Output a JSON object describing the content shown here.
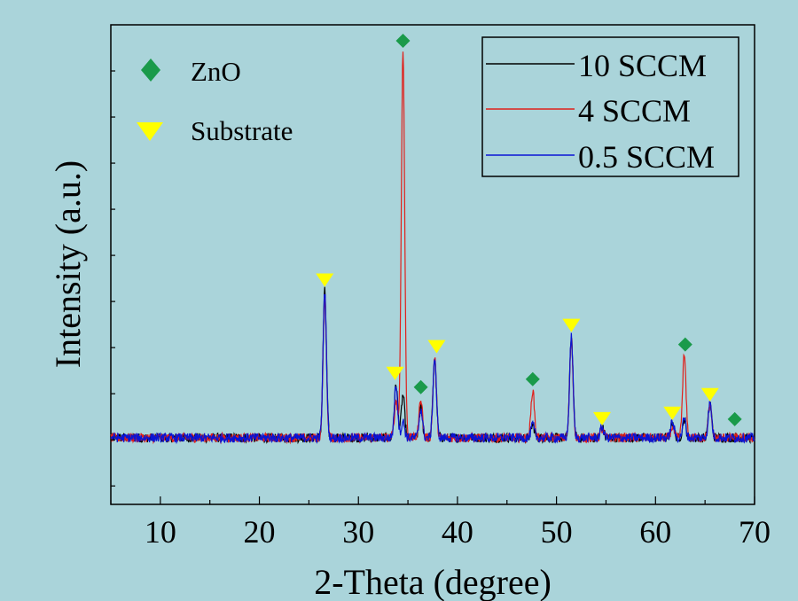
{
  "chart_data": {
    "type": "line",
    "xlabel": "2-Theta (degree)",
    "ylabel": "Intensity (a.u.)",
    "xlim": [
      5,
      70
    ],
    "ylim": [
      -0.25,
      1.55
    ],
    "x_ticks": [
      10,
      20,
      30,
      40,
      50,
      60,
      70
    ],
    "x_tick_labels": [
      "10",
      "20",
      "30",
      "40",
      "50",
      "60",
      "70"
    ],
    "y_tick_labels_visible": false,
    "grid": false,
    "legend_position": "top-right",
    "series": [
      {
        "name": "10 SCCM",
        "color": "#000000",
        "peaks": [
          {
            "x": 26.6,
            "y": 0.55
          },
          {
            "x": 33.8,
            "y": 0.2
          },
          {
            "x": 34.5,
            "y": 0.16
          },
          {
            "x": 36.3,
            "y": 0.11
          },
          {
            "x": 37.7,
            "y": 0.3
          },
          {
            "x": 47.6,
            "y": 0.05
          },
          {
            "x": 51.5,
            "y": 0.38
          },
          {
            "x": 54.6,
            "y": 0.04
          },
          {
            "x": 61.7,
            "y": 0.06
          },
          {
            "x": 62.9,
            "y": 0.07
          },
          {
            "x": 65.5,
            "y": 0.13
          }
        ]
      },
      {
        "name": "4 SCCM",
        "color": "#e0201b",
        "peaks": [
          {
            "x": 26.6,
            "y": 0.52
          },
          {
            "x": 33.8,
            "y": 0.14
          },
          {
            "x": 34.5,
            "y": 1.45
          },
          {
            "x": 36.3,
            "y": 0.15
          },
          {
            "x": 37.7,
            "y": 0.3
          },
          {
            "x": 47.6,
            "y": 0.18
          },
          {
            "x": 51.5,
            "y": 0.37
          },
          {
            "x": 54.6,
            "y": 0.03
          },
          {
            "x": 61.7,
            "y": 0.04
          },
          {
            "x": 62.9,
            "y": 0.31
          },
          {
            "x": 65.5,
            "y": 0.12
          }
        ]
      },
      {
        "name": "0.5 SCCM",
        "color": "#0a14d4",
        "peaks": [
          {
            "x": 26.6,
            "y": 0.55
          },
          {
            "x": 33.8,
            "y": 0.2
          },
          {
            "x": 34.5,
            "y": 0.06
          },
          {
            "x": 36.3,
            "y": 0.11
          },
          {
            "x": 37.7,
            "y": 0.3
          },
          {
            "x": 47.6,
            "y": 0.05
          },
          {
            "x": 51.5,
            "y": 0.38
          },
          {
            "x": 54.6,
            "y": 0.04
          },
          {
            "x": 61.7,
            "y": 0.06
          },
          {
            "x": 62.9,
            "y": 0.07
          },
          {
            "x": 65.5,
            "y": 0.13
          }
        ]
      }
    ],
    "markers": {
      "ZnO": {
        "label": "ZnO",
        "symbol": "diamond",
        "color": "#1a9a4a",
        "points": [
          {
            "x": 34.5,
            "y": 1.49
          },
          {
            "x": 36.3,
            "y": 0.19
          },
          {
            "x": 47.6,
            "y": 0.22
          },
          {
            "x": 63.0,
            "y": 0.35
          },
          {
            "x": 68.0,
            "y": 0.07
          }
        ]
      },
      "Substrate": {
        "label": "Substrate",
        "symbol": "triangle-down",
        "color": "#ffff00",
        "points": [
          {
            "x": 26.6,
            "y": 0.59
          },
          {
            "x": 33.7,
            "y": 0.24
          },
          {
            "x": 37.9,
            "y": 0.34
          },
          {
            "x": 51.5,
            "y": 0.42
          },
          {
            "x": 54.6,
            "y": 0.07
          },
          {
            "x": 61.7,
            "y": 0.09
          },
          {
            "x": 65.5,
            "y": 0.16
          }
        ]
      }
    }
  }
}
